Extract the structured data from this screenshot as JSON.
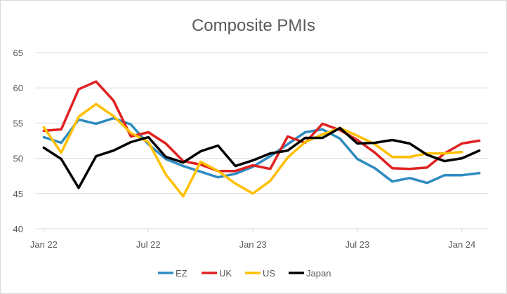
{
  "chart_data": {
    "type": "line",
    "title": "Composite PMIs",
    "xlabel": "",
    "ylabel": "",
    "ylim": [
      40,
      65
    ],
    "yticks": [
      "40",
      "45",
      "50",
      "55",
      "60",
      "65"
    ],
    "xtick_labels": [
      {
        "label": "Jan 22",
        "index": 0
      },
      {
        "label": "Jul 22",
        "index": 6
      },
      {
        "label": "Jan 23",
        "index": 12
      },
      {
        "label": "Jul 23",
        "index": 18
      },
      {
        "label": "Jan 24",
        "index": 24
      }
    ],
    "grid": "horizontal",
    "legend_position": "bottom",
    "series": [
      {
        "name": "EZ",
        "color": "#2e8bc0",
        "values": [
          53.0,
          52.2,
          55.5,
          54.9,
          55.7,
          54.8,
          52.0,
          49.9,
          48.9,
          48.1,
          47.3,
          47.8,
          48.8,
          50.3,
          52.0,
          53.7,
          54.1,
          52.8,
          49.9,
          48.6,
          46.7,
          47.2,
          46.5,
          47.6,
          47.6,
          47.9
        ]
      },
      {
        "name": "UK",
        "color": "#e02020",
        "values": [
          53.9,
          54.1,
          59.8,
          60.9,
          58.2,
          53.1,
          53.7,
          52.1,
          49.6,
          49.1,
          48.2,
          48.2,
          49.0,
          48.5,
          53.1,
          52.2,
          54.9,
          54.0,
          52.6,
          50.8,
          48.6,
          48.5,
          48.7,
          50.7,
          52.1,
          52.5
        ]
      },
      {
        "name": "US",
        "color": "#ffc000",
        "values": [
          54.4,
          50.8,
          55.9,
          57.7,
          56.0,
          53.6,
          52.3,
          47.7,
          44.6,
          49.5,
          48.2,
          46.4,
          45.0,
          46.8,
          50.1,
          52.3,
          53.4,
          54.3,
          53.2,
          52.0,
          50.2,
          50.2,
          50.7,
          50.7,
          50.9,
          null
        ]
      },
      {
        "name": "Japan",
        "color": "#000000",
        "values": [
          51.5,
          49.9,
          45.8,
          50.3,
          51.1,
          52.3,
          53.0,
          50.2,
          49.4,
          51.0,
          51.8,
          48.9,
          49.7,
          50.7,
          51.1,
          52.9,
          52.9,
          54.3,
          52.1,
          52.2,
          52.6,
          52.1,
          50.5,
          49.6,
          50.0,
          51.1
        ]
      }
    ]
  }
}
